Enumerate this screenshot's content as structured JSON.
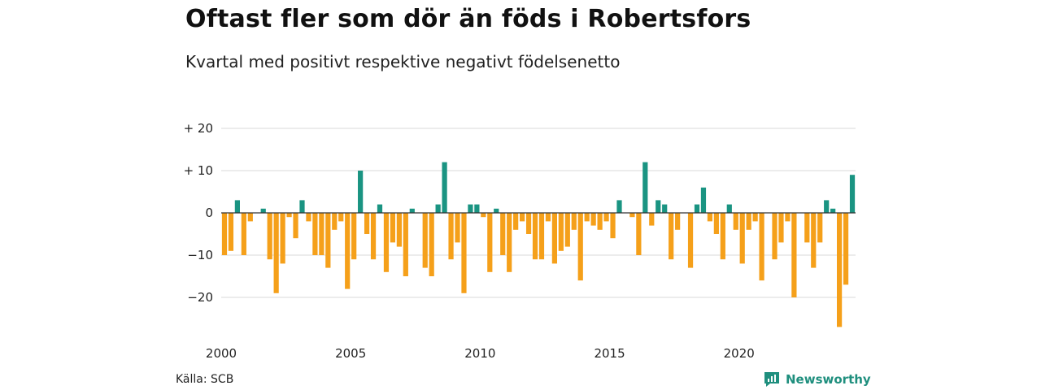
{
  "header": {
    "title": "Oftast fler som dör än föds i Robertsfors",
    "subtitle": "Kvartal med positivt respektive negativt födelsenetto"
  },
  "footer": {
    "source": "Källa: SCB",
    "brand": "Newsworthy"
  },
  "colors": {
    "positive": "#1a9482",
    "negative": "#f5a01a",
    "grid": "#d9d9d9",
    "zero": "#333333",
    "brand": "#1f8f7e"
  },
  "chart_data": {
    "type": "bar",
    "title": "Oftast fler som dör än föds i Robertsfors",
    "subtitle": "Kvartal med positivt respektive negativt födelsenetto",
    "x_start": 2000,
    "quarters_per_year": 4,
    "ylim": [
      -28,
      20
    ],
    "yticks": [
      20,
      10,
      0,
      -10,
      -20
    ],
    "ytick_labels": [
      "+ 20",
      "+ 10",
      "0",
      "−10",
      "−20"
    ],
    "xticks": [
      2000,
      2005,
      2010,
      2015,
      2020
    ],
    "xtick_labels": [
      "2000",
      "2005",
      "2010",
      "2015",
      "2020"
    ],
    "grid": true,
    "values": [
      -10,
      -9,
      3,
      -10,
      -2,
      0,
      1,
      -11,
      -19,
      -12,
      -1,
      -6,
      3,
      -2,
      -10,
      -10,
      -13,
      -4,
      -2,
      -18,
      -11,
      10,
      -5,
      -11,
      2,
      -14,
      -7,
      -8,
      -15,
      1,
      0,
      -13,
      -15,
      2,
      12,
      -11,
      -7,
      -19,
      2,
      2,
      -1,
      -14,
      1,
      -10,
      -14,
      -4,
      -2,
      -5,
      -11,
      -11,
      -2,
      -12,
      -9,
      -8,
      -4,
      -16,
      -2,
      -3,
      -4,
      -2,
      -6,
      3,
      0,
      -1,
      -10,
      12,
      -3,
      3,
      2,
      -11,
      -4,
      0,
      -13,
      2,
      6,
      -2,
      -5,
      -11,
      2,
      -4,
      -12,
      -4,
      -2,
      -16,
      0,
      -11,
      -7,
      -2,
      -20,
      0,
      -7,
      -13,
      -7,
      3,
      1,
      -27,
      -17,
      9
    ]
  }
}
